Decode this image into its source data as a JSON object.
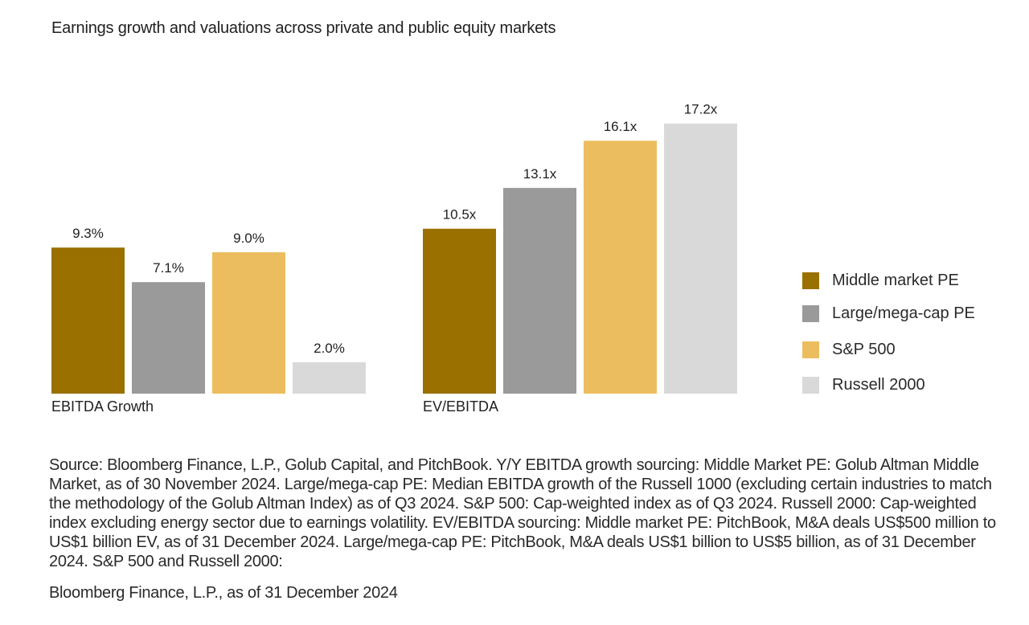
{
  "chart_data": {
    "type": "bar",
    "title": "Earnings growth and valuations across private and public equity markets",
    "series_names": [
      "Middle market PE",
      "Large/mega-cap PE",
      "S&P 500",
      "Russell 2000"
    ],
    "colors": [
      "#9a7000",
      "#9a9a9a",
      "#ecbd5e",
      "#d9d9d9"
    ],
    "groups": [
      {
        "label": "EBITDA Growth",
        "values": [
          9.3,
          7.1,
          9.0,
          2.0
        ],
        "labels": [
          "9.3%",
          "7.1%",
          "9.0%",
          "2.0%"
        ]
      },
      {
        "label": "EV/EBITDA",
        "values": [
          10.5,
          13.1,
          16.1,
          17.2
        ],
        "labels": [
          "10.5x",
          "13.1x",
          "16.1x",
          "17.2x"
        ]
      }
    ],
    "xlabel": "",
    "ylabel": "",
    "grid": false,
    "legend_position": "right"
  },
  "source_note": "Source: Bloomberg Finance, L.P., Golub Capital, and PitchBook. Y/Y EBITDA growth sourcing: Middle Market PE: Golub Altman Middle Market, as of 30 November 2024. Large/mega-cap PE: Median EBITDA growth of the Russell 1000 (excluding certain industries to match the methodology of the Golub Altman Index) as of Q3 2024. S&P 500: Cap-weighted index as of Q3 2024. Russell 2000: Cap-weighted index excluding energy sector due to earnings volatility. EV/EBITDA sourcing: Middle market PE: PitchBook, M&A deals US$500 million to US$1 billion EV, as of 31 December 2024. Large/mega-cap PE: PitchBook, M&A deals US$1 billion to US$5 billion, as of 31 December 2024. S&P 500 and Russell 2000:",
  "source_note_2": "Bloomberg Finance, L.P., as of 31 December 2024"
}
